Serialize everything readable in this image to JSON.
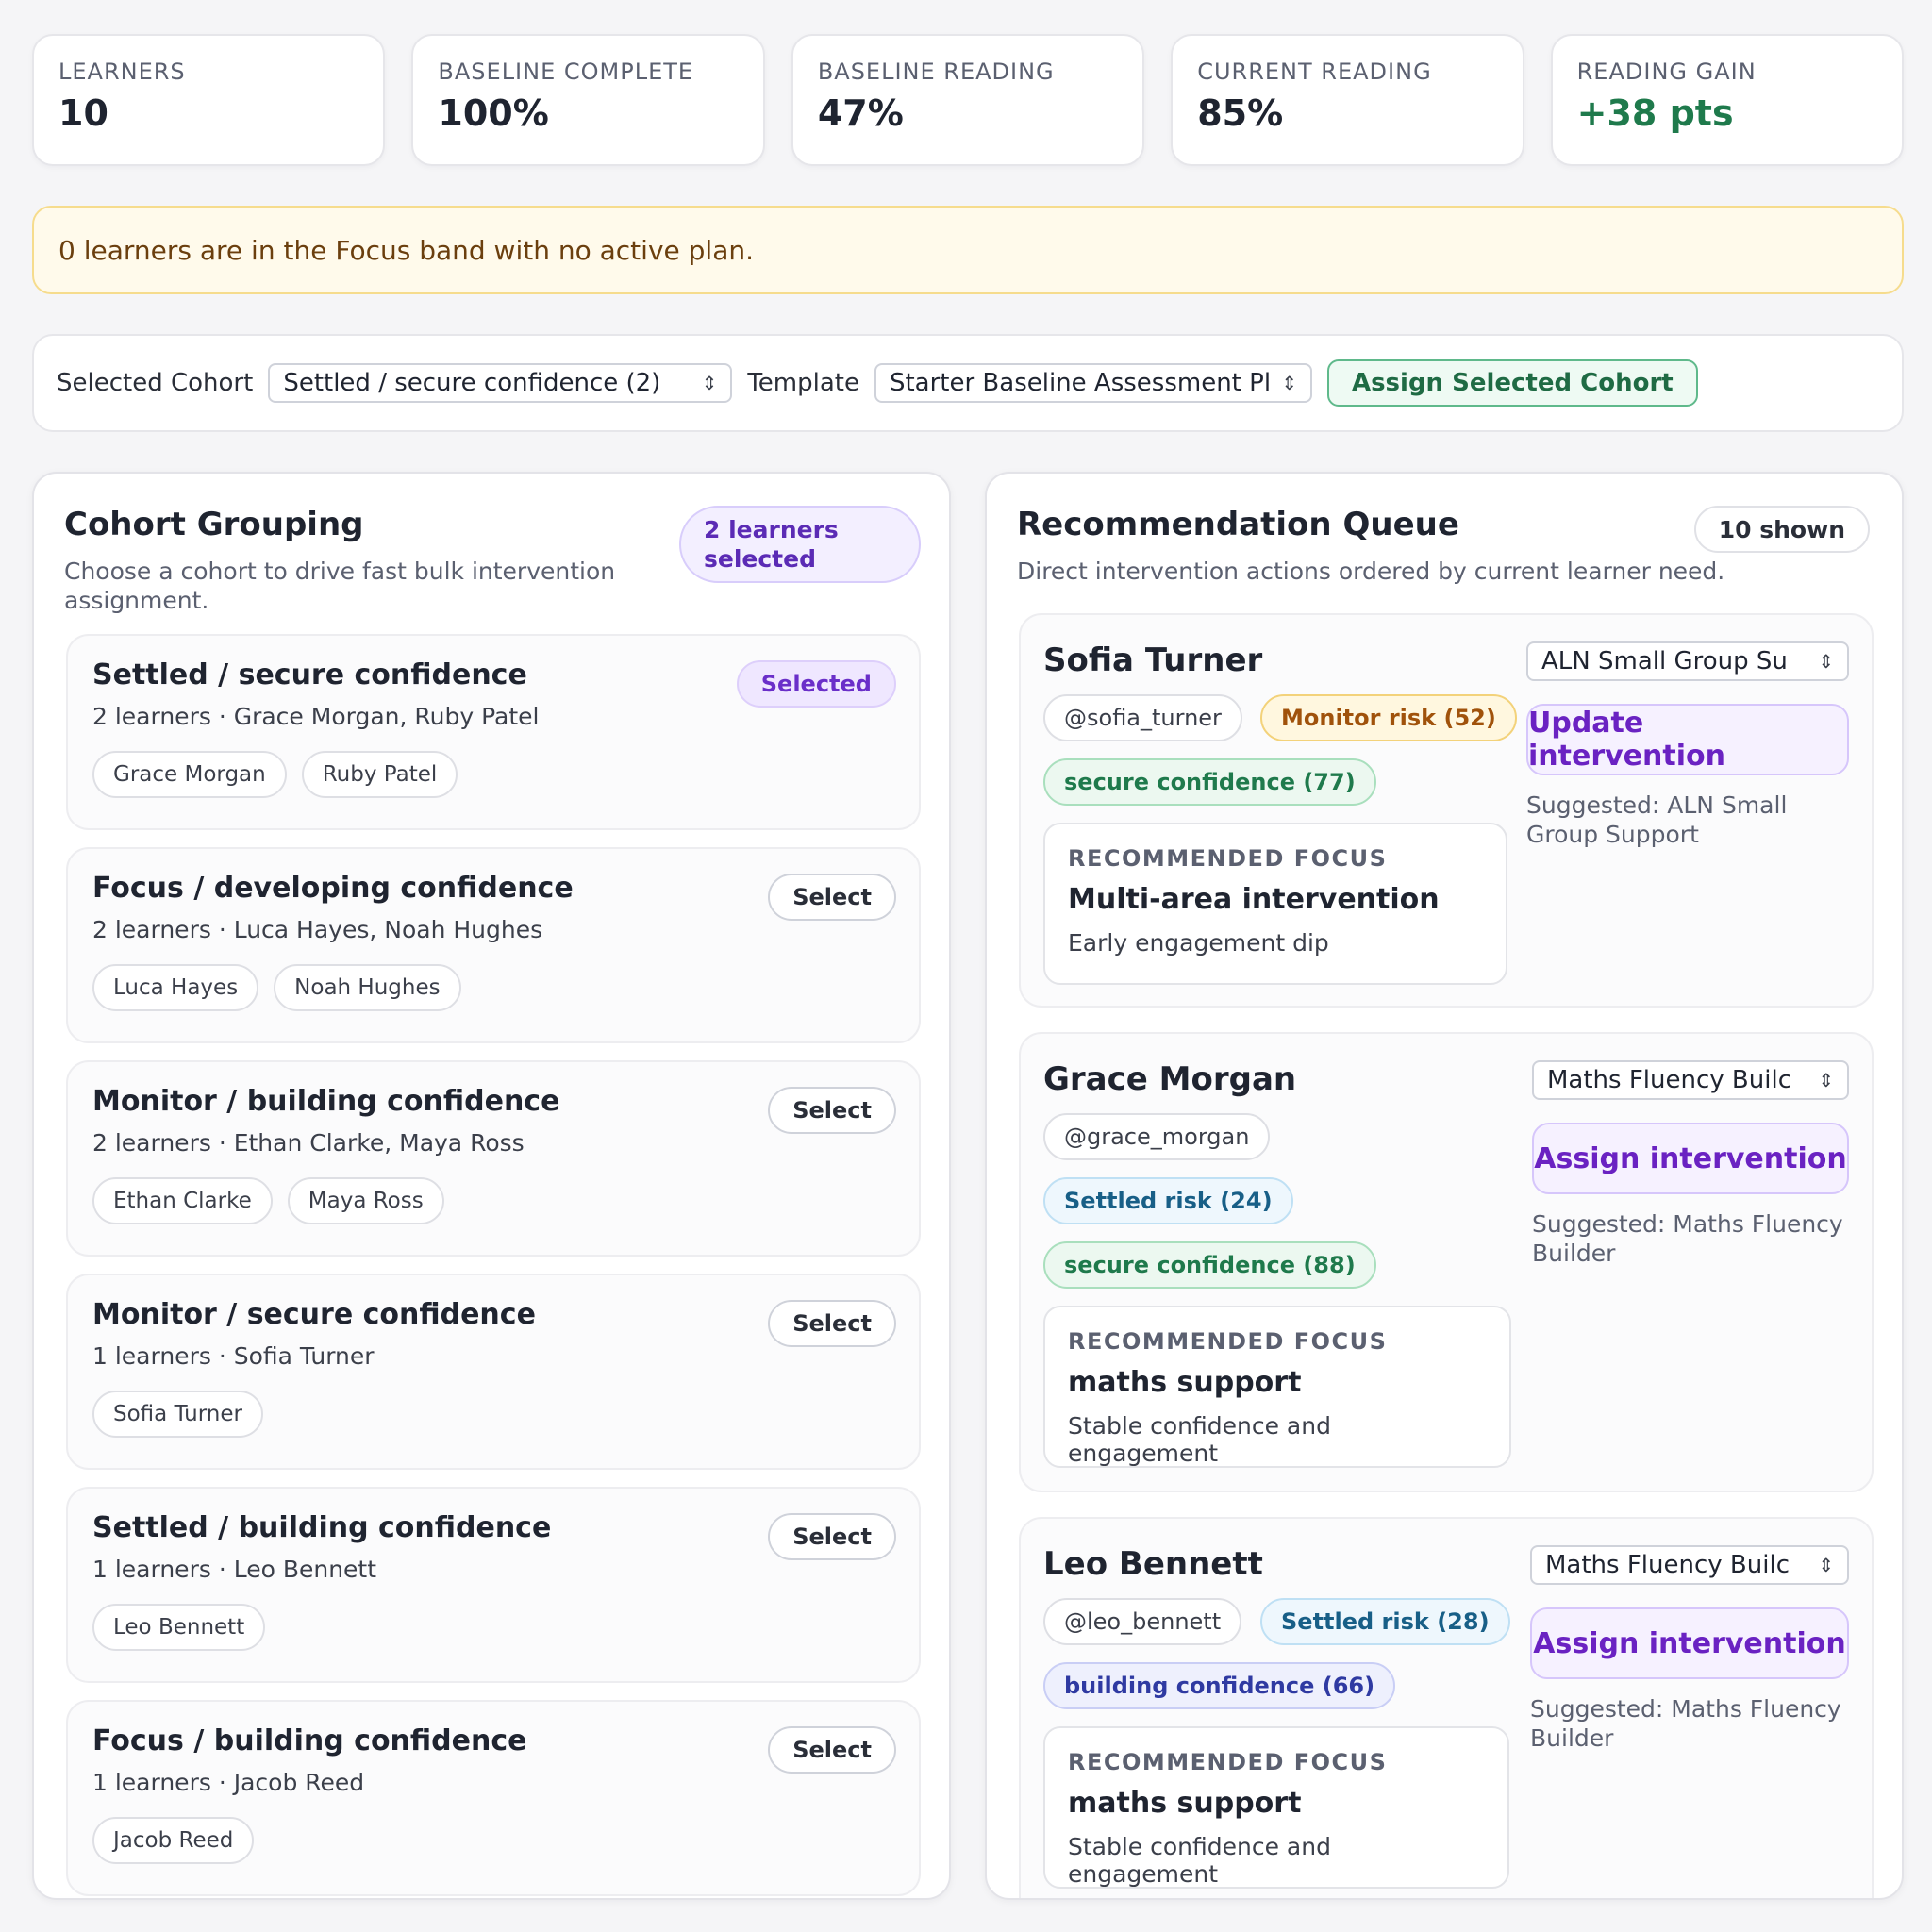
{
  "kpis": [
    {
      "label": "LEARNERS",
      "value": "10"
    },
    {
      "label": "BASELINE COMPLETE",
      "value": "100%"
    },
    {
      "label": "BASELINE READING",
      "value": "47%"
    },
    {
      "label": "CURRENT READING",
      "value": "85%"
    },
    {
      "label": "READING GAIN",
      "value": "+38 pts"
    }
  ],
  "alert": {
    "text": "0 learners are in the Focus band with no active plan."
  },
  "filters": {
    "cohort_label": "Selected Cohort",
    "cohort_value": "Settled / secure confidence (2)",
    "template_label": "Template",
    "template_value": "Starter Baseline Assessment Plan",
    "assign_label": "Assign Selected Cohort"
  },
  "cohort_panel": {
    "title": "Cohort Grouping",
    "subtitle_line1": "Choose a cohort to drive fast bulk intervention",
    "subtitle_line2": "assignment.",
    "selected_badge_line1": "2 learners",
    "selected_badge_line2": "selected",
    "cohorts": [
      {
        "title": "Settled / secure confidence",
        "meta": "2 learners · Grace Morgan, Ruby Patel",
        "action": "Selected",
        "chips": [
          "Grace Morgan",
          "Ruby Patel"
        ]
      },
      {
        "title": "Focus / developing confidence",
        "meta": "2 learners · Luca Hayes, Noah Hughes",
        "action": "Select",
        "chips": [
          "Luca Hayes",
          "Noah Hughes"
        ]
      },
      {
        "title": "Monitor / building confidence",
        "meta": "2 learners · Ethan Clarke, Maya Ross",
        "action": "Select",
        "chips": [
          "Ethan Clarke",
          "Maya Ross"
        ]
      },
      {
        "title": "Monitor / secure confidence",
        "meta": "1 learners · Sofia Turner",
        "action": "Select",
        "chips": [
          "Sofia Turner"
        ]
      },
      {
        "title": "Settled / building confidence",
        "meta": "1 learners · Leo Bennett",
        "action": "Select",
        "chips": [
          "Leo Bennett"
        ]
      },
      {
        "title": "Focus / building confidence",
        "meta": "1 learners · Jacob Reed",
        "action": "Select",
        "chips": [
          "Jacob Reed"
        ]
      }
    ]
  },
  "queue_panel": {
    "title": "Recommendation Queue",
    "subtitle": "Direct intervention actions ordered by current learner need.",
    "shown_badge": "10 shown",
    "focus_heading": "RECOMMENDED FOCUS",
    "items": [
      {
        "name": "Sofia Turner",
        "handle": "@sofia_turner",
        "risk": "Monitor risk (52)",
        "confidence": "secure confidence (77)",
        "focus_title": "Multi-area intervention",
        "focus_desc": "Early engagement dip",
        "select_value": "ALN Small Group Su",
        "button": "Update intervention",
        "suggested_line1": "Suggested: ALN Small",
        "suggested_line2": "Group Support"
      },
      {
        "name": "Grace Morgan",
        "handle": "@grace_morgan",
        "risk": "Settled risk (24)",
        "confidence": "secure confidence (88)",
        "focus_title": "maths support",
        "focus_desc": "Stable confidence and engagement",
        "select_value": "Maths Fluency Builc",
        "button": "Assign intervention",
        "suggested_line1": "Suggested: Maths Fluency",
        "suggested_line2": "Builder"
      },
      {
        "name": "Leo Bennett",
        "handle": "@leo_bennett",
        "risk": "Settled risk (28)",
        "confidence": "building confidence (66)",
        "focus_title": "maths support",
        "focus_desc": "Stable confidence and engagement",
        "select_value": "Maths Fluency Builc",
        "button": "Assign intervention",
        "suggested_line1": "Suggested: Maths Fluency",
        "suggested_line2": "Builder"
      }
    ]
  },
  "colors": {
    "accent_purple": "#6a22c2",
    "gain_green": "#1f7a4c",
    "alert_bg": "#fffaeb"
  }
}
